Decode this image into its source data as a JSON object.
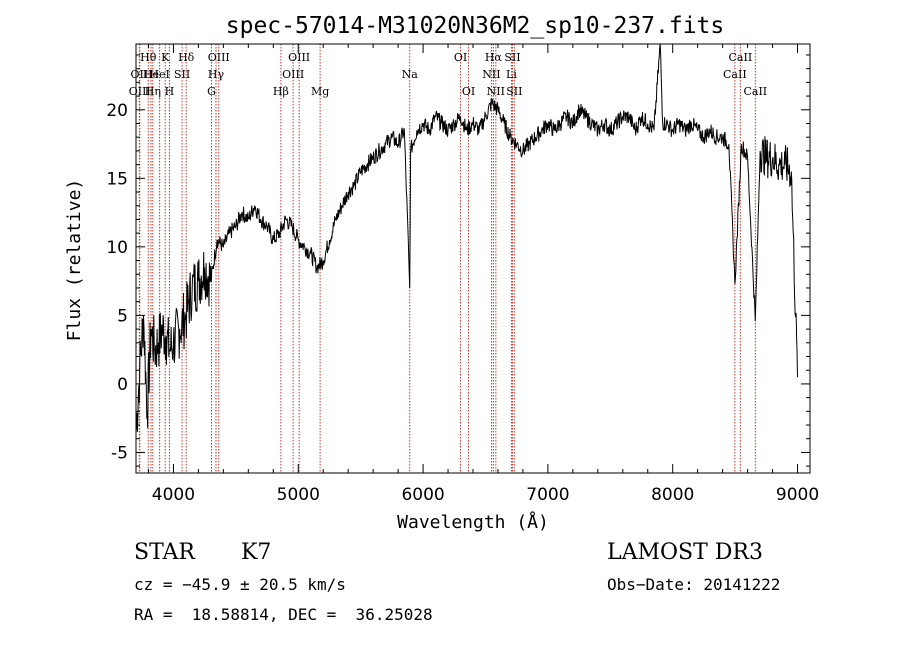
{
  "chart_data": {
    "type": "line",
    "title": "spec-57014-M31020N36M2_sp10-237.fits",
    "xlabel": "Wavelength (Å)",
    "ylabel": "Flux (relative)",
    "xlim": [
      3700,
      9100
    ],
    "ylim": [
      -6.5,
      24.8
    ],
    "xticks": [
      4000,
      5000,
      6000,
      7000,
      8000,
      9000
    ],
    "yticks": [
      -5,
      0,
      5,
      10,
      15,
      20
    ],
    "series": [
      {
        "name": "spectrum",
        "x": [
          3700,
          3730,
          3760,
          3790,
          3820,
          3850,
          3880,
          3910,
          3940,
          3970,
          4000,
          4050,
          4100,
          4150,
          4200,
          4250,
          4300,
          4350,
          4400,
          4450,
          4500,
          4550,
          4600,
          4650,
          4700,
          4750,
          4800,
          4850,
          4900,
          4950,
          5000,
          5050,
          5100,
          5150,
          5200,
          5250,
          5300,
          5350,
          5400,
          5450,
          5500,
          5550,
          5600,
          5650,
          5700,
          5750,
          5800,
          5850,
          5893,
          5900,
          5950,
          6000,
          6050,
          6100,
          6150,
          6200,
          6250,
          6300,
          6350,
          6400,
          6450,
          6500,
          6550,
          6600,
          6650,
          6700,
          6750,
          6800,
          6850,
          6900,
          6950,
          7000,
          7050,
          7100,
          7150,
          7200,
          7250,
          7300,
          7350,
          7400,
          7450,
          7500,
          7550,
          7600,
          7650,
          7700,
          7750,
          7800,
          7850,
          7900,
          7920,
          7950,
          8000,
          8050,
          8100,
          8150,
          8200,
          8250,
          8300,
          8350,
          8400,
          8450,
          8498,
          8550,
          8600,
          8662,
          8700,
          8750,
          8800,
          8850,
          8900,
          8950,
          9000
        ],
        "values": [
          -3.5,
          1.0,
          5.0,
          -2.0,
          4.0,
          2.5,
          3.0,
          4.0,
          3.5,
          2.5,
          3.0,
          4.0,
          5.0,
          7.0,
          7.5,
          8.5,
          7.5,
          10.5,
          10.0,
          11.0,
          11.5,
          12.5,
          12.0,
          13.0,
          12.0,
          11.5,
          10.5,
          11.0,
          12.0,
          11.5,
          10.5,
          10.0,
          9.5,
          8.5,
          9.0,
          10.5,
          12.0,
          13.0,
          14.0,
          14.5,
          15.5,
          16.0,
          16.5,
          17.0,
          17.5,
          18.0,
          17.5,
          18.5,
          7.0,
          17.0,
          18.5,
          19.0,
          18.5,
          19.5,
          19.0,
          18.5,
          19.0,
          19.5,
          18.5,
          19.0,
          18.5,
          19.5,
          20.5,
          20.0,
          19.0,
          18.0,
          17.5,
          17.0,
          17.5,
          18.0,
          18.5,
          19.0,
          18.5,
          19.0,
          19.5,
          19.0,
          20.0,
          19.5,
          19.0,
          18.5,
          19.0,
          18.5,
          19.0,
          19.5,
          19.5,
          18.5,
          19.5,
          19.0,
          18.5,
          24.8,
          19.0,
          19.0,
          18.5,
          19.0,
          18.5,
          19.0,
          18.5,
          18.0,
          18.5,
          18.0,
          18.0,
          17.5,
          7.3,
          17.5,
          16.5,
          4.6,
          17.0,
          16.5,
          16.5,
          16.0,
          16.0,
          15.5,
          0.5
        ]
      }
    ],
    "lines": [
      {
        "label": "Hθ",
        "x": 3798,
        "row": 1
      },
      {
        "label": "OII",
        "x": 3727,
        "row": 2
      },
      {
        "label": "OIII",
        "x": 3730,
        "row": 3
      },
      {
        "label": "He",
        "x": 3820,
        "row": 2
      },
      {
        "label": "Hη",
        "x": 3835,
        "row": 3
      },
      {
        "label": "K",
        "x": 3934,
        "row": 1
      },
      {
        "label": "HeI",
        "x": 3889,
        "row": 2
      },
      {
        "label": "H",
        "x": 3968,
        "row": 3
      },
      {
        "label": "SII",
        "x": 4069,
        "row": 2
      },
      {
        "label": "Hδ",
        "x": 4102,
        "row": 1
      },
      {
        "label": "OIII",
        "x": 4363,
        "row": 1
      },
      {
        "label": "Hγ",
        "x": 4341,
        "row": 2
      },
      {
        "label": "G",
        "x": 4305,
        "row": 3
      },
      {
        "label": "Hβ",
        "x": 4861,
        "row": 3
      },
      {
        "label": "OIII",
        "x": 5007,
        "row": 1
      },
      {
        "label": "OIII",
        "x": 4959,
        "row": 2
      },
      {
        "label": "Mg",
        "x": 5175,
        "row": 3
      },
      {
        "label": "Na",
        "x": 5893,
        "row": 2
      },
      {
        "label": "OI",
        "x": 6300,
        "row": 1
      },
      {
        "label": "OI",
        "x": 6364,
        "row": 3
      },
      {
        "label": "Hα",
        "x": 6563,
        "row": 1
      },
      {
        "label": "NII",
        "x": 6548,
        "row": 2
      },
      {
        "label": "NII",
        "x": 6583,
        "row": 3
      },
      {
        "label": "SII",
        "x": 6716,
        "row": 1
      },
      {
        "label": "Li",
        "x": 6708,
        "row": 2
      },
      {
        "label": "SII",
        "x": 6731,
        "row": 3
      },
      {
        "label": "CaII",
        "x": 8542,
        "row": 1
      },
      {
        "label": "CaII",
        "x": 8498,
        "row": 2
      },
      {
        "label": "CaII",
        "x": 8662,
        "row": 3
      }
    ]
  },
  "info": {
    "class": "STAR",
    "subclass": "K7",
    "survey": "LAMOST DR3",
    "cz": "cz = −45.9 ± 20.5 km/s",
    "obs_date": "Obs−Date: 20141222",
    "radec": "RA =  18.58814, DEC =  36.25028"
  },
  "colors": {
    "line_marker": "#c0392b",
    "spectrum": "#000000"
  }
}
